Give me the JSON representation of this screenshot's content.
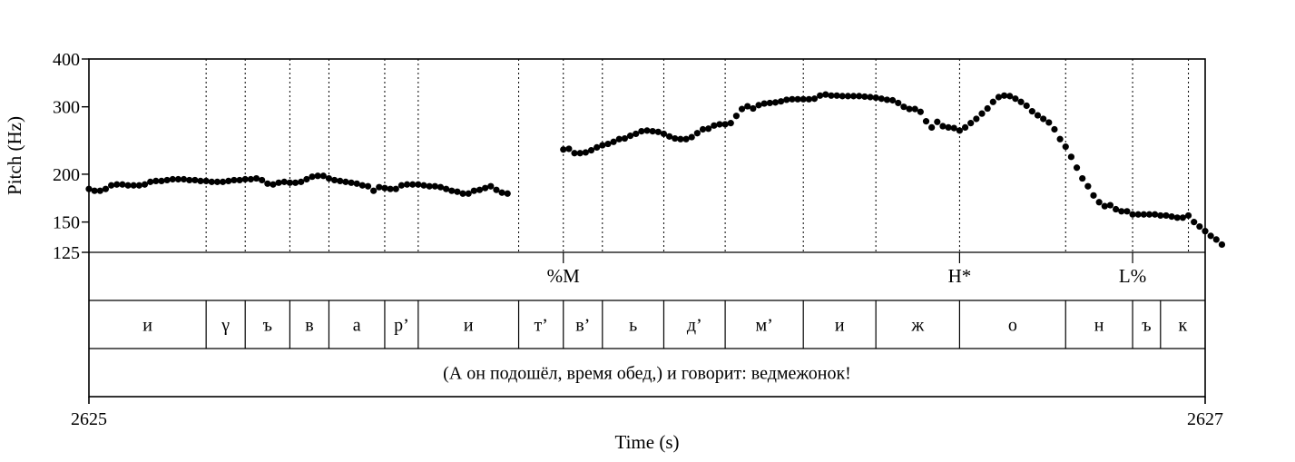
{
  "chart_data": {
    "type": "scatter",
    "xlabel": "Time (s)",
    "ylabel": "Pitch (Hz)",
    "xlim": [
      2625,
      2627
    ],
    "ylim": [
      125,
      400
    ],
    "y_scale": "log",
    "x_tick_labels": [
      "2625",
      "2627"
    ],
    "y_ticks": [
      {
        "value": 125,
        "label": "125"
      },
      {
        "value": 150,
        "label": "150"
      },
      {
        "value": 200,
        "label": "200"
      },
      {
        "value": 300,
        "label": "300"
      },
      {
        "value": 400,
        "label": "400"
      }
    ],
    "points": [
      [
        2625.0,
        183
      ],
      [
        2625.01,
        181
      ],
      [
        2625.02,
        181
      ],
      [
        2625.03,
        183
      ],
      [
        2625.04,
        187
      ],
      [
        2625.05,
        188
      ],
      [
        2625.06,
        188
      ],
      [
        2625.07,
        187
      ],
      [
        2625.08,
        187
      ],
      [
        2625.09,
        187
      ],
      [
        2625.1,
        188
      ],
      [
        2625.11,
        191
      ],
      [
        2625.12,
        192
      ],
      [
        2625.13,
        192
      ],
      [
        2625.14,
        193
      ],
      [
        2625.15,
        194
      ],
      [
        2625.16,
        194
      ],
      [
        2625.17,
        194
      ],
      [
        2625.18,
        193
      ],
      [
        2625.19,
        193
      ],
      [
        2625.2,
        192
      ],
      [
        2625.21,
        192
      ],
      [
        2625.22,
        191
      ],
      [
        2625.23,
        191
      ],
      [
        2625.24,
        191
      ],
      [
        2625.25,
        192
      ],
      [
        2625.26,
        193
      ],
      [
        2625.27,
        193
      ],
      [
        2625.28,
        194
      ],
      [
        2625.29,
        194
      ],
      [
        2625.3,
        195
      ],
      [
        2625.31,
        193
      ],
      [
        2625.32,
        189
      ],
      [
        2625.33,
        188
      ],
      [
        2625.34,
        190
      ],
      [
        2625.35,
        191
      ],
      [
        2625.36,
        190
      ],
      [
        2625.37,
        190
      ],
      [
        2625.38,
        191
      ],
      [
        2625.39,
        194
      ],
      [
        2625.4,
        197
      ],
      [
        2625.41,
        198
      ],
      [
        2625.42,
        198
      ],
      [
        2625.43,
        195
      ],
      [
        2625.44,
        193
      ],
      [
        2625.45,
        192
      ],
      [
        2625.46,
        191
      ],
      [
        2625.47,
        190
      ],
      [
        2625.48,
        189
      ],
      [
        2625.49,
        187
      ],
      [
        2625.5,
        186
      ],
      [
        2625.51,
        181
      ],
      [
        2625.52,
        185
      ],
      [
        2625.53,
        184
      ],
      [
        2625.54,
        183
      ],
      [
        2625.55,
        183
      ],
      [
        2625.56,
        187
      ],
      [
        2625.57,
        188
      ],
      [
        2625.58,
        188
      ],
      [
        2625.59,
        188
      ],
      [
        2625.6,
        187
      ],
      [
        2625.61,
        186
      ],
      [
        2625.62,
        186
      ],
      [
        2625.63,
        185
      ],
      [
        2625.64,
        183
      ],
      [
        2625.65,
        181
      ],
      [
        2625.66,
        180
      ],
      [
        2625.67,
        178
      ],
      [
        2625.68,
        178
      ],
      [
        2625.69,
        181
      ],
      [
        2625.7,
        182
      ],
      [
        2625.71,
        184
      ],
      [
        2625.72,
        186
      ],
      [
        2625.73,
        182
      ],
      [
        2625.74,
        179
      ],
      [
        2625.75,
        178
      ],
      [
        2625.85,
        232
      ],
      [
        2625.86,
        233
      ],
      [
        2625.87,
        227
      ],
      [
        2625.88,
        227
      ],
      [
        2625.89,
        228
      ],
      [
        2625.9,
        231
      ],
      [
        2625.91,
        235
      ],
      [
        2625.92,
        238
      ],
      [
        2625.93,
        240
      ],
      [
        2625.94,
        243
      ],
      [
        2625.95,
        247
      ],
      [
        2625.96,
        248
      ],
      [
        2625.97,
        252
      ],
      [
        2625.98,
        255
      ],
      [
        2625.99,
        259
      ],
      [
        2626.0,
        260
      ],
      [
        2626.01,
        259
      ],
      [
        2626.02,
        258
      ],
      [
        2626.03,
        255
      ],
      [
        2626.04,
        251
      ],
      [
        2626.05,
        248
      ],
      [
        2626.06,
        247
      ],
      [
        2626.07,
        247
      ],
      [
        2626.08,
        250
      ],
      [
        2626.09,
        256
      ],
      [
        2626.1,
        262
      ],
      [
        2626.11,
        263
      ],
      [
        2626.12,
        268
      ],
      [
        2626.13,
        270
      ],
      [
        2626.14,
        270
      ],
      [
        2626.15,
        272
      ],
      [
        2626.16,
        284
      ],
      [
        2626.17,
        296
      ],
      [
        2626.18,
        301
      ],
      [
        2626.19,
        297
      ],
      [
        2626.2,
        303
      ],
      [
        2626.21,
        306
      ],
      [
        2626.22,
        307
      ],
      [
        2626.23,
        308
      ],
      [
        2626.24,
        310
      ],
      [
        2626.25,
        313
      ],
      [
        2626.26,
        314
      ],
      [
        2626.27,
        314
      ],
      [
        2626.28,
        314
      ],
      [
        2626.29,
        314
      ],
      [
        2626.3,
        315
      ],
      [
        2626.31,
        321
      ],
      [
        2626.32,
        323
      ],
      [
        2626.33,
        321
      ],
      [
        2626.34,
        321
      ],
      [
        2626.35,
        320
      ],
      [
        2626.36,
        320
      ],
      [
        2626.37,
        320
      ],
      [
        2626.38,
        320
      ],
      [
        2626.39,
        319
      ],
      [
        2626.4,
        318
      ],
      [
        2626.41,
        317
      ],
      [
        2626.42,
        315
      ],
      [
        2626.43,
        313
      ],
      [
        2626.44,
        312
      ],
      [
        2626.45,
        307
      ],
      [
        2626.46,
        300
      ],
      [
        2626.47,
        296
      ],
      [
        2626.48,
        296
      ],
      [
        2626.49,
        291
      ],
      [
        2626.5,
        275
      ],
      [
        2626.51,
        265
      ],
      [
        2626.52,
        274
      ],
      [
        2626.53,
        267
      ],
      [
        2626.54,
        265
      ],
      [
        2626.55,
        264
      ],
      [
        2626.56,
        260
      ],
      [
        2626.57,
        265
      ],
      [
        2626.58,
        272
      ],
      [
        2626.59,
        279
      ],
      [
        2626.6,
        288
      ],
      [
        2626.61,
        297
      ],
      [
        2626.62,
        309
      ],
      [
        2626.63,
        318
      ],
      [
        2626.64,
        321
      ],
      [
        2626.65,
        320
      ],
      [
        2626.66,
        315
      ],
      [
        2626.67,
        309
      ],
      [
        2626.68,
        302
      ],
      [
        2626.69,
        292
      ],
      [
        2626.7,
        285
      ],
      [
        2626.71,
        279
      ],
      [
        2626.72,
        273
      ],
      [
        2626.73,
        262
      ],
      [
        2626.74,
        247
      ],
      [
        2626.75,
        236
      ],
      [
        2626.76,
        222
      ],
      [
        2626.77,
        208
      ],
      [
        2626.78,
        195
      ],
      [
        2626.79,
        186
      ],
      [
        2626.8,
        176
      ],
      [
        2626.81,
        169
      ],
      [
        2626.82,
        165
      ],
      [
        2626.83,
        166
      ],
      [
        2626.84,
        162
      ],
      [
        2626.85,
        160
      ],
      [
        2626.86,
        160
      ],
      [
        2626.87,
        157
      ],
      [
        2626.88,
        157
      ],
      [
        2626.89,
        157
      ],
      [
        2626.9,
        157
      ],
      [
        2626.91,
        157
      ],
      [
        2626.92,
        156
      ],
      [
        2626.93,
        156
      ],
      [
        2626.94,
        155
      ],
      [
        2626.95,
        154
      ],
      [
        2626.96,
        154
      ],
      [
        2626.97,
        156
      ],
      [
        2626.98,
        150
      ],
      [
        2626.99,
        146
      ],
      [
        2627.0,
        142
      ],
      [
        2627.01,
        138
      ],
      [
        2627.02,
        135
      ],
      [
        2627.03,
        131
      ]
    ],
    "segment_boundaries": [
      2625.21,
      2625.28,
      2625.36,
      2625.43,
      2625.53,
      2625.59,
      2625.77,
      2625.85,
      2625.92,
      2626.03,
      2626.14,
      2626.28,
      2626.41,
      2626.56,
      2626.75,
      2626.87,
      2626.97,
      2627.0
    ],
    "tones": [
      {
        "label": "%M",
        "time": 2625.85
      },
      {
        "label": "H*",
        "time": 2626.56
      },
      {
        "label": "L%",
        "time": 2626.87
      }
    ],
    "segments": [
      {
        "label": "и",
        "start": 2625.0,
        "end": 2625.21
      },
      {
        "label": "γ",
        "start": 2625.21,
        "end": 2625.28
      },
      {
        "label": "ъ",
        "start": 2625.28,
        "end": 2625.36
      },
      {
        "label": "в",
        "start": 2625.36,
        "end": 2625.43
      },
      {
        "label": "а",
        "start": 2625.43,
        "end": 2625.53
      },
      {
        "label": "р’",
        "start": 2625.53,
        "end": 2625.59
      },
      {
        "label": "и",
        "start": 2625.59,
        "end": 2625.77
      },
      {
        "label": "т’",
        "start": 2625.77,
        "end": 2625.85
      },
      {
        "label": "в’",
        "start": 2625.85,
        "end": 2625.92
      },
      {
        "label": "ь",
        "start": 2625.92,
        "end": 2626.03
      },
      {
        "label": "д’",
        "start": 2626.03,
        "end": 2626.14
      },
      {
        "label": "м’",
        "start": 2626.14,
        "end": 2626.28
      },
      {
        "label": "и",
        "start": 2626.28,
        "end": 2626.41
      },
      {
        "label": "ж",
        "start": 2626.41,
        "end": 2626.56
      },
      {
        "label": "о",
        "start": 2626.56,
        "end": 2626.75
      },
      {
        "label": "н",
        "start": 2626.75,
        "end": 2626.87
      },
      {
        "label": "ъ",
        "start": 2626.87,
        "end": 2626.92
      },
      {
        "label": "к",
        "start": 2626.92,
        "end": 2627.0
      }
    ],
    "sentence": "(А он подошёл, время обед,) и говорит: ведмежонок!"
  }
}
